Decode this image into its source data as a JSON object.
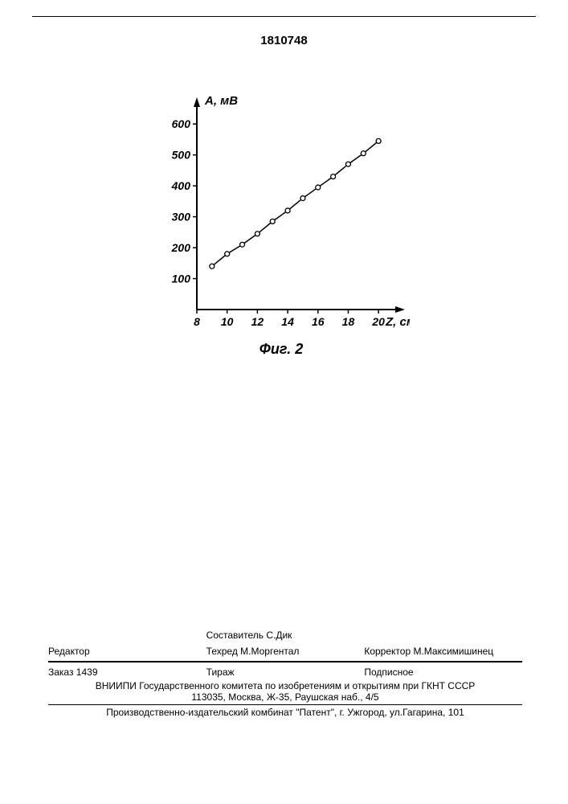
{
  "doc_number": "1810748",
  "chart": {
    "type": "line-scatter",
    "y_label": "А, мВ",
    "x_label": "Z, см",
    "caption": "Фиг. 2",
    "x_ticks": [
      8,
      10,
      12,
      14,
      16,
      18,
      20
    ],
    "y_ticks": [
      100,
      200,
      300,
      400,
      500,
      600
    ],
    "x_range": [
      8,
      21
    ],
    "y_range": [
      0,
      650
    ],
    "points": [
      {
        "x": 9,
        "y": 140
      },
      {
        "x": 10,
        "y": 180
      },
      {
        "x": 11,
        "y": 210
      },
      {
        "x": 12,
        "y": 245
      },
      {
        "x": 13,
        "y": 285
      },
      {
        "x": 14,
        "y": 320
      },
      {
        "x": 15,
        "y": 360
      },
      {
        "x": 16,
        "y": 395
      },
      {
        "x": 17,
        "y": 430
      },
      {
        "x": 18,
        "y": 470
      },
      {
        "x": 19,
        "y": 505
      },
      {
        "x": 20,
        "y": 545
      }
    ],
    "line_color": "#000000",
    "marker_fill": "#ffffff",
    "marker_stroke": "#000000",
    "marker_radius": 3,
    "line_width": 1.5,
    "axis_width": 2,
    "background": "#ffffff",
    "label_fontsize": 15,
    "tick_fontsize": 14,
    "caption_fontsize": 18
  },
  "footer": {
    "row1": {
      "left": "",
      "mid": "Составитель  С.Дик",
      "right": ""
    },
    "row2": {
      "left": "Редактор",
      "mid": "Техред М.Моргентал",
      "right": "Корректор  М.Максимишинец"
    },
    "row3": {
      "left": "Заказ 1439",
      "mid": "Тираж",
      "right": "Подписное"
    },
    "line1": "ВНИИПИ Государственного комитета по изобретениям и открытиям при ГКНТ СССР",
    "line2": "113035, Москва, Ж-35, Раушская наб., 4/5",
    "line3": "Производственно-издательский комбинат \"Патент\", г. Ужгород, ул.Гагарина, 101"
  }
}
